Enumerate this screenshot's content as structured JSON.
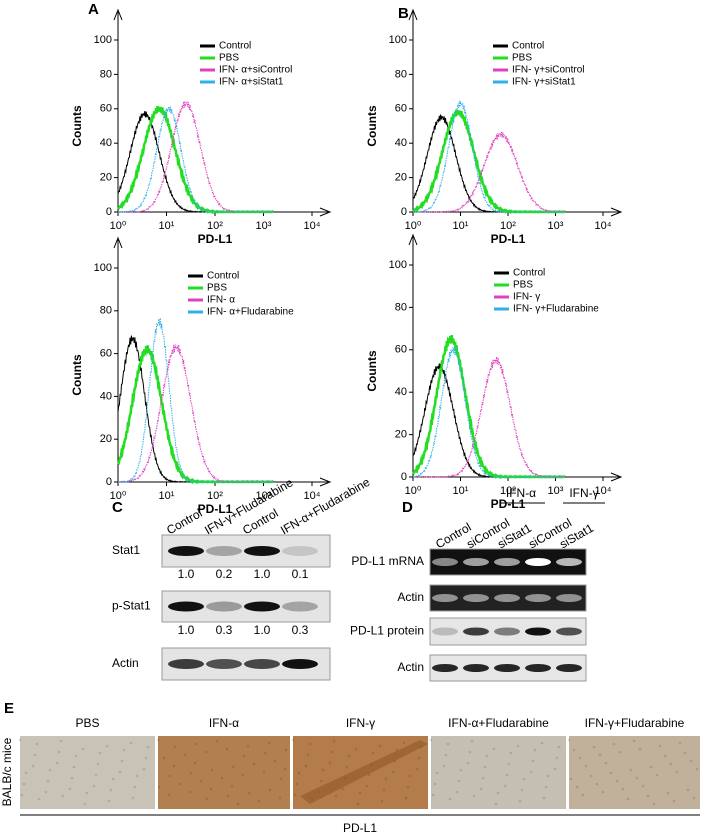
{
  "histograms": [
    {
      "panel": "A",
      "y_label": "Counts",
      "x_label": "PD-L1",
      "yticks": [
        0,
        20,
        40,
        60,
        80,
        100
      ],
      "xticks": [
        {
          "value": 0,
          "label": "10⁰"
        },
        {
          "value": 1,
          "label": "10¹"
        },
        {
          "value": 2,
          "label": "10²"
        },
        {
          "value": 3,
          "label": "10³"
        },
        {
          "value": 4,
          "label": "10⁴"
        }
      ],
      "series": [
        {
          "name": "Control",
          "color": "#000000"
        },
        {
          "name": "PBS",
          "color": "#22dd22"
        },
        {
          "name": "IFN- α+siControl",
          "color": "#e040c0"
        },
        {
          "name": "IFN- α+siStat1",
          "color": "#30b0e8"
        }
      ]
    },
    {
      "panel": "B",
      "y_label": "Counts",
      "x_label": "PD-L1",
      "yticks": [
        0,
        20,
        40,
        60,
        80,
        100
      ],
      "xticks": [
        {
          "value": 0,
          "label": "10⁰"
        },
        {
          "value": 1,
          "label": "10¹"
        },
        {
          "value": 2,
          "label": "10²"
        },
        {
          "value": 3,
          "label": "10³"
        },
        {
          "value": 4,
          "label": "10⁴"
        }
      ],
      "series": [
        {
          "name": "Control",
          "color": "#000000"
        },
        {
          "name": "PBS",
          "color": "#22dd22"
        },
        {
          "name": "IFN- γ+siControl",
          "color": "#e040c0"
        },
        {
          "name": "IFN- γ+siStat1",
          "color": "#30b0e8"
        }
      ]
    },
    {
      "y_label": "Counts",
      "x_label": "PD-L1",
      "yticks": [
        0,
        20,
        40,
        60,
        80,
        100
      ],
      "xticks": [
        {
          "value": 0,
          "label": "10⁰"
        },
        {
          "value": 1,
          "label": "10¹"
        },
        {
          "value": 2,
          "label": "10²"
        },
        {
          "value": 3,
          "label": "10³"
        },
        {
          "value": 4,
          "label": "10⁴"
        }
      ],
      "series": [
        {
          "name": "Control",
          "color": "#000000"
        },
        {
          "name": "PBS",
          "color": "#22dd22"
        },
        {
          "name": "IFN- α",
          "color": "#e040c0"
        },
        {
          "name": "IFN- α+Fludarabine",
          "color": "#30b0e8"
        }
      ]
    },
    {
      "y_label": "Counts",
      "x_label": "PD-L1",
      "yticks": [
        0,
        20,
        40,
        60,
        80,
        100
      ],
      "xticks": [
        {
          "value": 0,
          "label": "10⁰"
        },
        {
          "value": 1,
          "label": "10¹"
        },
        {
          "value": 2,
          "label": "10²"
        },
        {
          "value": 3,
          "label": "10³"
        },
        {
          "value": 4,
          "label": "10⁴"
        }
      ],
      "series": [
        {
          "name": "Control",
          "color": "#000000"
        },
        {
          "name": "PBS",
          "color": "#22dd22"
        },
        {
          "name": "IFN- γ",
          "color": "#e040c0"
        },
        {
          "name": "IFN- γ+Fludarabine",
          "color": "#30b0e8"
        }
      ]
    }
  ],
  "blot_c": {
    "panel": "C",
    "columns": [
      "Control",
      "IFN-γ+Fludarabine",
      "Control",
      "IFN-α+Fludarabine"
    ],
    "rows": [
      "Stat1",
      "p-Stat1",
      "Actin"
    ],
    "quantification": [
      [
        "1.0",
        "0.2",
        "1.0",
        "0.1"
      ],
      [
        "1.0",
        "0.3",
        "1.0",
        "0.3"
      ]
    ]
  },
  "blot_d": {
    "panel": "D",
    "groups": [
      "IFN-α",
      "IFN-γ"
    ],
    "columns": [
      "Control",
      "siControl",
      "siStat1",
      "siControl",
      "siStat1"
    ],
    "rows": [
      "PD-L1 mRNA",
      "Actin",
      "PD-L1 protein",
      "Actin"
    ]
  },
  "panel_e": {
    "panel": "E",
    "side_label": "BALB/c mice",
    "images": [
      "PBS",
      "IFN-α",
      "IFN-γ",
      "IFN-α+Fludarabine",
      "IFN-γ+Fludarabine"
    ],
    "footer": "PD-L1"
  }
}
